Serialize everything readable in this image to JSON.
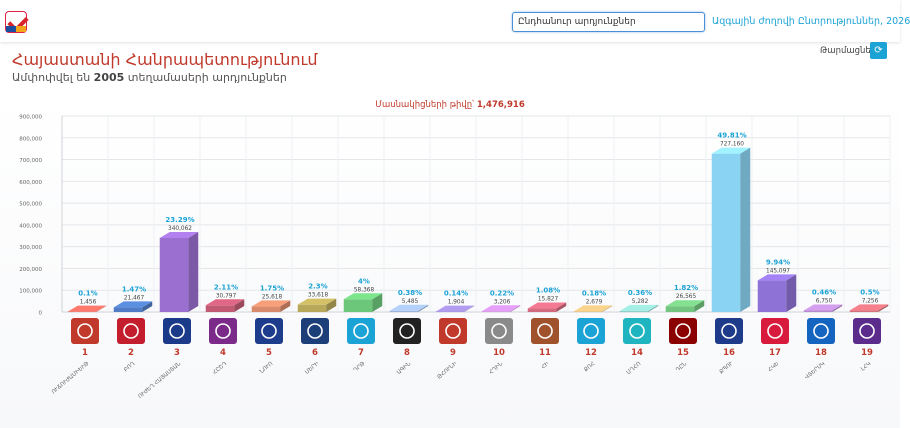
{
  "header": {
    "search_value": "Ընդհանուր արդյունքներ",
    "nav_link": "Ազգային ժողովի Ընտրություններ, 2026",
    "refresh_label": "Թարմացնել"
  },
  "page": {
    "title": "Հայաստանի Հանրապետությունում",
    "subtitle_prefix": "Ամփոփվել են ",
    "subtitle_count": "2005",
    "subtitle_suffix": " տեղամասերի արդյունքներ"
  },
  "colors": {
    "accent": "#1ca3d6",
    "title": "#c0392b"
  },
  "chart_data": {
    "type": "bar",
    "title": "Մասնակիցների թիվը՝ 1,476,916",
    "title_prefix": "Մասնակիցների թիվը՝ ",
    "title_value": "1,476,916",
    "ylim": [
      0,
      900000
    ],
    "yticks": [
      "0",
      "100,000",
      "200,000",
      "300,000",
      "400,000",
      "500,000",
      "600,000",
      "700,000",
      "800,000",
      "900,000"
    ],
    "grid": true,
    "categories": [
      "1",
      "2",
      "3",
      "4",
      "5",
      "6",
      "7",
      "8",
      "9",
      "10",
      "11",
      "12",
      "14",
      "15",
      "16",
      "17",
      "18",
      "19"
    ],
    "party_abbr": [
      "ՈՒՃՈՒԺԱՄԻԵՒԹ",
      "ԲՈՂ",
      "ՈՒԺԵՂ ՀԱՅԱՍՏԱՆ",
      "ՀԸՇԴ",
      "ՆՈՒՈ",
      "ՄԵՐԻ",
      "ԴՐԹ",
      "ԱԳԻՆ",
      "ԹՀՈՒՆԻ",
      "ՀՂԻՆ",
      "ՀԻ",
      "ՔՈՀ",
      "ՄՂՀՈ",
      "ԴԸՆ",
      "ՔՊՈՒ",
      "ՀԿԵ",
      "ՎՏԵՐՍԿ",
      "ԼՀԿ"
    ],
    "values": [
      1456,
      21467,
      340062,
      30797,
      25618,
      33618,
      58368,
      5485,
      1904,
      3206,
      15827,
      2679,
      5282,
      26565,
      727160,
      145097,
      6750,
      7256
    ],
    "value_labels": [
      "1,456",
      "21,467",
      "340,062",
      "30,797",
      "25,618",
      "33,618",
      "58,368",
      "5,485",
      "1,904",
      "3,206",
      "15,827",
      "2,679",
      "5,282",
      "26,565",
      "727,160",
      "145,097",
      "6,750",
      "7,256"
    ],
    "percents": [
      "0.1%",
      "1.47%",
      "23.29%",
      "2.11%",
      "1.75%",
      "2.3%",
      "4%",
      "0.38%",
      "0.14%",
      "0.22%",
      "1.08%",
      "0.18%",
      "0.36%",
      "1.82%",
      "49.81%",
      "9.94%",
      "0.46%",
      "0.5%"
    ],
    "bar_colors": [
      "#e06a5e",
      "#4f7cc4",
      "#9b6fd0",
      "#c35a74",
      "#d88a6a",
      "#b8a85a",
      "#6dc77a",
      "#9cb6d9",
      "#9a88d0",
      "#c98bd9",
      "#d46a80",
      "#d9b87a",
      "#8fd0c8",
      "#72c47e",
      "#8bd3f2",
      "#8e72d6",
      "#b88ad0",
      "#d6707a"
    ],
    "logo_colors": [
      "#c0392b",
      "#c41e2e",
      "#1b3a8a",
      "#7b2a8a",
      "#1e3c8c",
      "#1c3f7a",
      "#1ca3d6",
      "#222222",
      "#c0392b",
      "#8a8a8a",
      "#a0522d",
      "#1ca3d6",
      "#1fb5c0",
      "#8b0000",
      "#1e3a8a",
      "#d81b3c",
      "#1565c0",
      "#5b2c8c"
    ],
    "logo_icons": [
      "hand-logo-icon",
      "bolor-logo-icon",
      "strong-armenia-logo-icon",
      "lion-emblem-icon",
      "g-letter-logo-icon",
      "monogram-logo-icon",
      "bird-logo-icon",
      "archer-logo-icon",
      "crest-logo-icon",
      "circle-stripes-logo-icon",
      "ornament-logo-icon",
      "wave-logo-icon",
      "teal-tile-logo-icon",
      "red-ornament-logo-icon",
      "ribbon-logo-icon",
      "red-text-logo-icon",
      "sigma-logo-icon",
      "purple-tile-logo-icon"
    ]
  }
}
